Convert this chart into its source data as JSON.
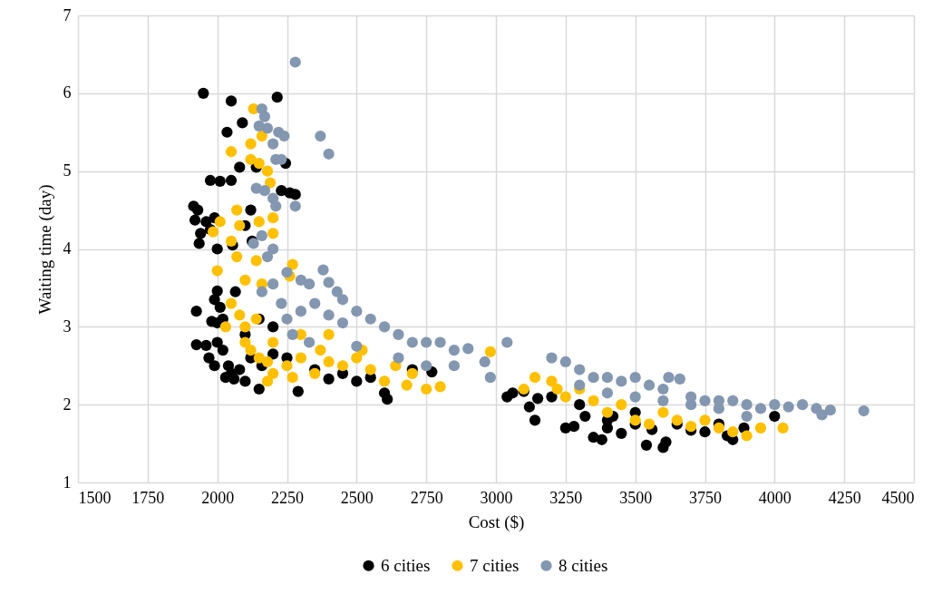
{
  "chart_data": {
    "type": "scatter",
    "xlabel": "Cost ($)",
    "ylabel": "Waiting time (day)",
    "xlim": [
      1500,
      4500
    ],
    "xticks": [
      {
        "value": 1500,
        "label": "1500"
      },
      {
        "value": 1750,
        "label": "1750"
      },
      {
        "value": 2000,
        "label": "2000"
      },
      {
        "value": 2250,
        "label": "2250"
      },
      {
        "value": 2500,
        "label": "2500"
      },
      {
        "value": 2750,
        "label": "2750"
      },
      {
        "value": 3000,
        "label": "3000"
      },
      {
        "value": 3250,
        "label": "3250"
      },
      {
        "value": 3500,
        "label": "3500"
      },
      {
        "value": 3750,
        "label": "3750"
      },
      {
        "value": 4000,
        "label": "4000"
      },
      {
        "value": 4250,
        "label": "4250"
      },
      {
        "value": 4500,
        "label": "4500"
      }
    ],
    "ylim": [
      1,
      7
    ],
    "yticks": [
      1,
      2,
      3,
      4,
      5,
      6,
      7
    ],
    "grid": true,
    "legend": "bottom",
    "marker": "circle",
    "series": [
      {
        "name": "6 cities",
        "color": "#000000",
        "x": [
          1950,
          2050,
          2215,
          2090,
          2035,
          2080,
          2140,
          1975,
          2010,
          2050,
          2245,
          2230,
          2260,
          2280,
          1915,
          1930,
          1920,
          1960,
          1990,
          1940,
          1935,
          1975,
          2000,
          2055,
          2100,
          2120,
          2125,
          1925,
          2000,
          1990,
          2010,
          2065,
          1980,
          2000,
          2020,
          1925,
          1960,
          2000,
          2020,
          1970,
          1990,
          2040,
          2050,
          2080,
          2030,
          2060,
          2100,
          2150,
          2120,
          2160,
          2200,
          2290,
          2250,
          2350,
          2400,
          2450,
          2500,
          2550,
          2600,
          2610,
          2700,
          2770,
          3040,
          3060,
          3100,
          3120,
          3140,
          3150,
          3200,
          3250,
          3280,
          3320,
          3350,
          3380,
          3400,
          3420,
          3450,
          3500,
          3540,
          3560,
          3600,
          3610,
          3650,
          3700,
          3750,
          3800,
          3830,
          3850,
          3890,
          4000,
          3400,
          3500,
          3300,
          2200,
          2100,
          2150
        ],
        "values": [
          6.0,
          5.9,
          5.95,
          5.62,
          5.5,
          5.05,
          5.05,
          4.88,
          4.87,
          4.88,
          5.1,
          4.75,
          4.72,
          4.7,
          4.55,
          4.5,
          4.37,
          4.35,
          4.4,
          4.2,
          4.07,
          4.25,
          4.0,
          4.05,
          4.3,
          4.5,
          4.1,
          3.2,
          3.46,
          3.35,
          3.25,
          3.45,
          3.07,
          3.05,
          3.1,
          2.77,
          2.76,
          2.8,
          2.7,
          2.6,
          2.5,
          2.5,
          2.4,
          2.45,
          2.35,
          2.33,
          2.3,
          2.2,
          2.6,
          2.5,
          2.65,
          2.17,
          2.6,
          2.45,
          2.33,
          2.4,
          2.3,
          2.35,
          2.15,
          2.07,
          2.45,
          2.42,
          2.1,
          2.15,
          2.17,
          1.97,
          1.8,
          2.08,
          2.1,
          1.7,
          1.72,
          1.85,
          1.58,
          1.55,
          1.7,
          1.85,
          1.63,
          1.75,
          1.48,
          1.68,
          1.45,
          1.52,
          1.75,
          1.67,
          1.65,
          1.75,
          1.6,
          1.55,
          1.7,
          1.85,
          1.8,
          1.9,
          2.0,
          3.0,
          2.9,
          3.1
        ]
      },
      {
        "name": "7 cities",
        "color": "#ffc000",
        "x": [
          2130,
          2160,
          2050,
          2120,
          2150,
          2180,
          2190,
          2120,
          2200,
          2070,
          2080,
          1985,
          2010,
          2050,
          2000,
          2070,
          2150,
          2200,
          2100,
          2140,
          2160,
          2270,
          2260,
          2050,
          2080,
          2100,
          2140,
          2030,
          2100,
          2120,
          2150,
          2180,
          2200,
          2180,
          2250,
          2270,
          2300,
          2350,
          2370,
          2400,
          2450,
          2500,
          2520,
          2550,
          2600,
          2640,
          2680,
          2700,
          2750,
          2800,
          2980,
          3100,
          3140,
          3200,
          3220,
          3250,
          3300,
          3350,
          3400,
          3450,
          3500,
          3550,
          3600,
          3650,
          3700,
          3750,
          3800,
          3850,
          3900,
          3950,
          4030,
          2300,
          2400,
          2200
        ],
        "values": [
          5.8,
          5.45,
          5.25,
          5.15,
          5.1,
          5.0,
          4.85,
          5.35,
          4.4,
          4.5,
          4.3,
          4.22,
          4.35,
          4.1,
          3.72,
          3.9,
          4.35,
          4.2,
          3.6,
          3.85,
          3.55,
          3.8,
          3.65,
          3.3,
          3.15,
          3.0,
          3.1,
          3.0,
          2.8,
          2.7,
          2.6,
          2.55,
          2.4,
          2.3,
          2.5,
          2.35,
          2.6,
          2.4,
          2.7,
          2.55,
          2.5,
          2.6,
          2.7,
          2.45,
          2.3,
          2.5,
          2.25,
          2.4,
          2.2,
          2.23,
          2.68,
          2.2,
          2.35,
          2.3,
          2.2,
          2.1,
          2.2,
          2.05,
          1.9,
          2.0,
          1.8,
          1.75,
          1.9,
          1.8,
          1.72,
          1.8,
          1.7,
          1.65,
          1.6,
          1.7,
          1.7,
          2.9,
          2.9,
          2.8
        ]
      },
      {
        "name": "8 cities",
        "color": "#8497b0",
        "x": [
          2280,
          2160,
          2170,
          2150,
          2180,
          2220,
          2240,
          2370,
          2200,
          2400,
          2210,
          2230,
          2140,
          2170,
          2200,
          2210,
          2280,
          2160,
          2130,
          2200,
          2180,
          2160,
          2200,
          2250,
          2300,
          2330,
          2380,
          2400,
          2430,
          2450,
          2230,
          2250,
          2300,
          2350,
          2400,
          2450,
          2500,
          2550,
          2600,
          2650,
          2700,
          2750,
          2800,
          2850,
          2900,
          2960,
          2980,
          2270,
          2330,
          2500,
          2650,
          2750,
          2850,
          3040,
          3200,
          3250,
          3300,
          3350,
          3400,
          3450,
          3500,
          3550,
          3600,
          3620,
          3660,
          3700,
          3750,
          3800,
          3850,
          3900,
          3950,
          4000,
          4050,
          4100,
          4150,
          4170,
          4200,
          4320,
          3300,
          3400,
          3500,
          3600,
          3700,
          3800,
          3900
        ],
        "values": [
          6.4,
          5.8,
          5.7,
          5.58,
          5.55,
          5.5,
          5.45,
          5.45,
          5.35,
          5.22,
          5.15,
          5.15,
          4.78,
          4.75,
          4.65,
          4.55,
          4.55,
          4.17,
          4.07,
          4.0,
          3.9,
          3.45,
          3.55,
          3.7,
          3.6,
          3.55,
          3.73,
          3.57,
          3.45,
          3.35,
          3.3,
          3.1,
          3.2,
          3.3,
          3.15,
          3.05,
          3.2,
          3.1,
          3.0,
          2.9,
          2.8,
          2.8,
          2.8,
          2.7,
          2.72,
          2.55,
          2.35,
          2.9,
          2.8,
          2.75,
          2.6,
          2.5,
          2.5,
          2.8,
          2.6,
          2.55,
          2.45,
          2.35,
          2.35,
          2.3,
          2.35,
          2.25,
          2.2,
          2.35,
          2.33,
          2.1,
          2.05,
          2.05,
          2.05,
          2.0,
          1.95,
          2.0,
          1.97,
          2.0,
          1.95,
          1.87,
          1.93,
          1.92,
          2.25,
          2.15,
          2.1,
          2.05,
          2.0,
          1.95,
          1.85
        ]
      }
    ]
  }
}
